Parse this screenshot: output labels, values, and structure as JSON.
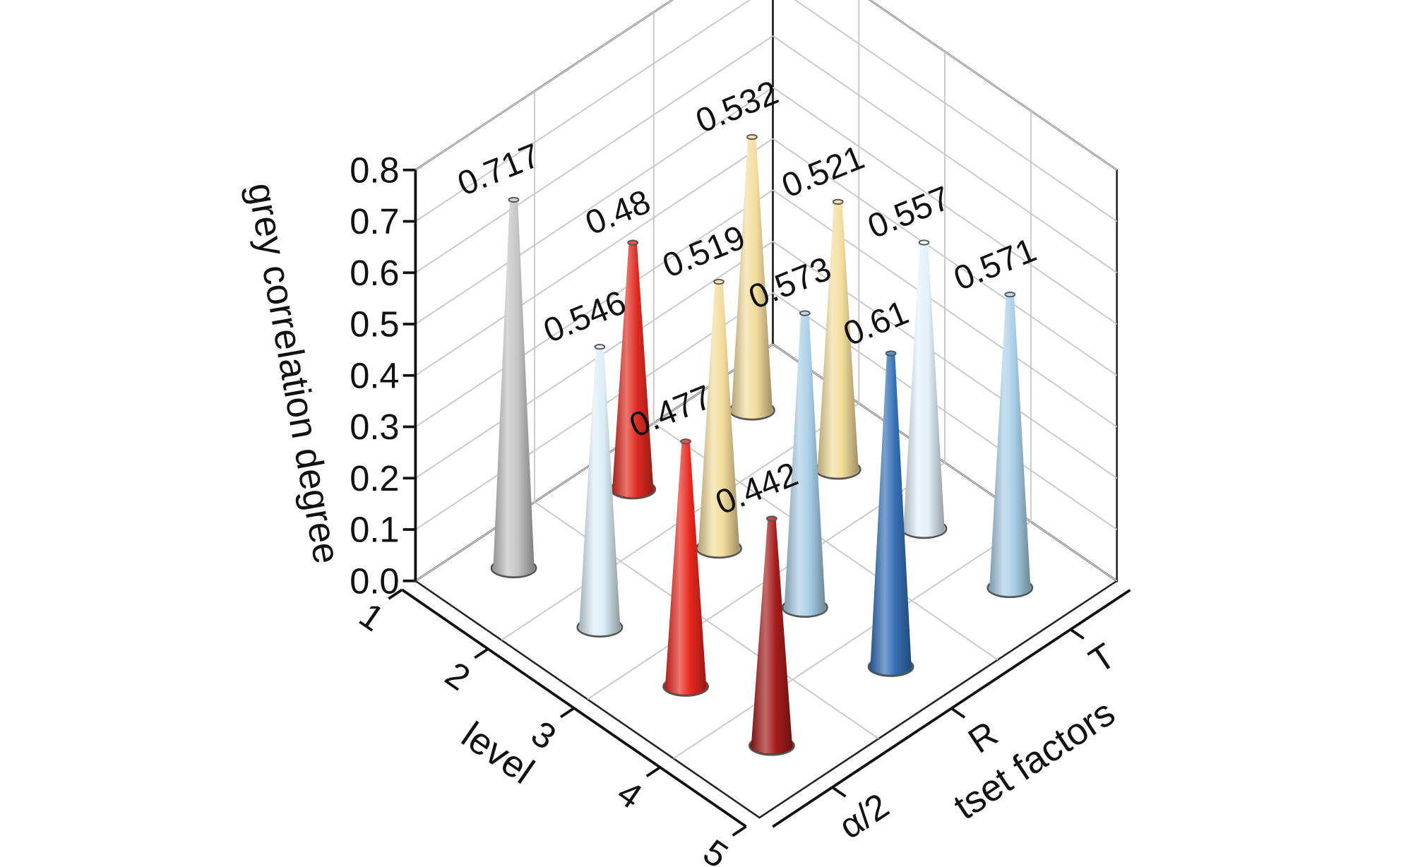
{
  "chart_data": {
    "type": "cone3d",
    "zlabel": "grey correlation degree",
    "xlabel": "level",
    "ylabel": "tset factors",
    "x_categories": [
      "1",
      "2",
      "3",
      "4",
      "5"
    ],
    "y_categories": [
      "α/2",
      "R",
      "T"
    ],
    "values": [
      [
        0.717,
        0.546,
        0.477,
        0.442,
        null
      ],
      [
        0.48,
        0.519,
        0.573,
        0.61,
        null
      ],
      [
        0.532,
        0.521,
        0.557,
        0.571,
        null
      ]
    ],
    "colors": [
      [
        "#c4c4c4",
        "#dcedf6",
        "#e8281f",
        "#a51b1b",
        null
      ],
      [
        "#e02a22",
        "#f4dc9c",
        "#a9cfe8",
        "#3470b6",
        null
      ],
      [
        "#f4dc9c",
        "#f4dc9c",
        "#e3f1f9",
        "#a9cfe8",
        null
      ]
    ],
    "zlim": [
      0,
      0.8
    ],
    "zticks": [
      {
        "value": 0,
        "label": "0.0"
      },
      0.1,
      0.2,
      0.3,
      0.4,
      0.5,
      0.6,
      0.7,
      0.8
    ],
    "grid": true
  }
}
